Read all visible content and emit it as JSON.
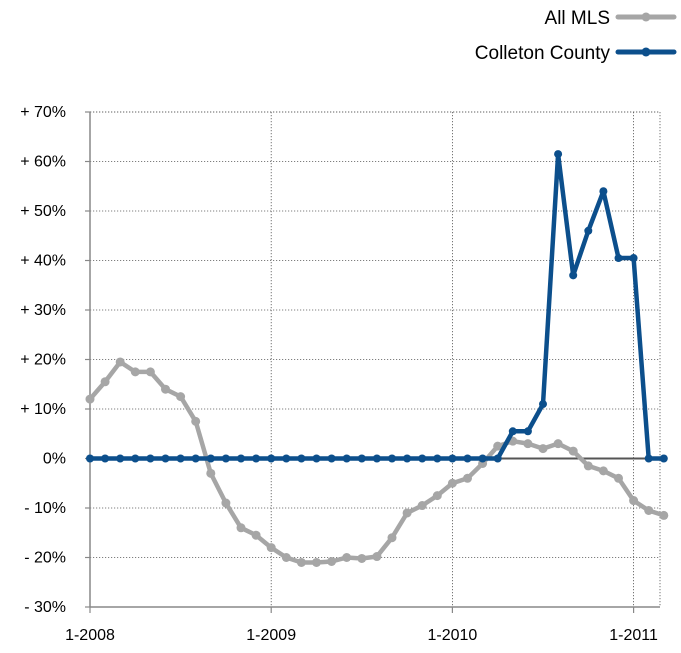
{
  "chart_data": {
    "type": "line",
    "title": "",
    "xlabel": "",
    "ylabel": "",
    "ylim": [
      -30,
      70
    ],
    "y_ticks": [
      70,
      60,
      50,
      40,
      30,
      20,
      10,
      0,
      -10,
      -20,
      -30
    ],
    "y_tick_labels": [
      "+ 70%",
      "+ 60%",
      "+ 50%",
      "+ 40%",
      "+ 30%",
      "+ 20%",
      "+ 10%",
      "0%",
      "- 10%",
      "- 20%",
      "- 30%"
    ],
    "x_start": "1-2008",
    "x_end": "3-2011",
    "x_tick_labels": [
      "1-2008",
      "1-2009",
      "1-2010",
      "1-2011"
    ],
    "grid": true,
    "legend_position": "top-right",
    "colors": {
      "all_mls": "#a6a6a6",
      "colleton": "#0c4f8c",
      "zero_line": "#555555",
      "grid": "#555555",
      "axis": "#888888"
    },
    "x": [
      "1-2008",
      "2-2008",
      "3-2008",
      "4-2008",
      "5-2008",
      "6-2008",
      "7-2008",
      "8-2008",
      "9-2008",
      "10-2008",
      "11-2008",
      "12-2008",
      "1-2009",
      "2-2009",
      "3-2009",
      "4-2009",
      "5-2009",
      "6-2009",
      "7-2009",
      "8-2009",
      "9-2009",
      "10-2009",
      "11-2009",
      "12-2009",
      "1-2010",
      "2-2010",
      "3-2010",
      "4-2010",
      "5-2010",
      "6-2010",
      "7-2010",
      "8-2010",
      "9-2010",
      "10-2010",
      "11-2010",
      "12-2010",
      "1-2011",
      "2-2011",
      "3-2011"
    ],
    "series": [
      {
        "name": "All MLS",
        "values": [
          12,
          15.5,
          19.5,
          17.5,
          17.5,
          14,
          12.5,
          7.5,
          -3,
          -9,
          -14,
          -15.5,
          -18,
          -20,
          -21,
          -21,
          -20.8,
          -20,
          -20.2,
          -19.8,
          -16,
          -11,
          -9.5,
          -7.5,
          -5,
          -4,
          -1,
          2.5,
          3.5,
          3,
          2,
          3,
          1.5,
          -1.5,
          -2.5,
          -4,
          -8.5,
          -10.5,
          -11.5
        ]
      },
      {
        "name": "Colleton County",
        "values": [
          0,
          0,
          0,
          0,
          0,
          0,
          0,
          0,
          0,
          0,
          0,
          0,
          0,
          0,
          0,
          0,
          0,
          0,
          0,
          0,
          0,
          0,
          0,
          0,
          0,
          0,
          0,
          0,
          5.5,
          5.5,
          11,
          61.5,
          37,
          46,
          54,
          40.5,
          40.5,
          0,
          0
        ]
      }
    ]
  }
}
